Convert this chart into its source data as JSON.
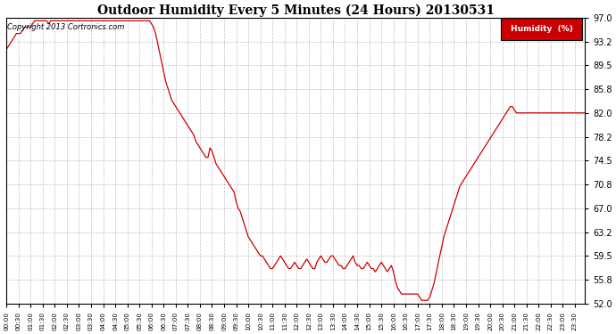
{
  "title": "Outdoor Humidity Every 5 Minutes (24 Hours) 20130531",
  "copyright": "Copyright 2013 Cortronics.com",
  "legend_label": "Humidity  (%)",
  "legend_bg": "#cc0000",
  "legend_text_color": "#ffffff",
  "line_color": "#cc0000",
  "background_color": "#ffffff",
  "grid_color": "#999999",
  "ylim": [
    52.0,
    97.0
  ],
  "yticks": [
    52.0,
    55.8,
    59.5,
    63.2,
    67.0,
    70.8,
    74.5,
    78.2,
    82.0,
    85.8,
    89.5,
    93.2,
    97.0
  ],
  "humidity_values": [
    92.0,
    92.5,
    93.0,
    93.5,
    94.0,
    94.5,
    94.5,
    94.5,
    95.0,
    95.5,
    95.5,
    95.5,
    95.5,
    96.0,
    96.5,
    96.5,
    96.5,
    96.5,
    96.5,
    96.5,
    96.5,
    96.0,
    96.5,
    96.5,
    96.5,
    96.5,
    96.5,
    96.5,
    96.5,
    96.5,
    96.5,
    96.5,
    96.5,
    96.5,
    96.5,
    96.5,
    96.5,
    96.5,
    96.5,
    96.5,
    96.5,
    96.5,
    96.5,
    96.5,
    96.5,
    96.5,
    96.5,
    96.5,
    96.5,
    96.5,
    96.5,
    96.5,
    96.5,
    96.5,
    96.5,
    96.5,
    96.5,
    96.5,
    96.5,
    96.5,
    96.5,
    96.5,
    96.5,
    96.5,
    96.5,
    96.5,
    96.5,
    96.5,
    96.5,
    96.5,
    96.5,
    96.5,
    96.0,
    95.5,
    94.5,
    93.0,
    91.5,
    90.0,
    88.5,
    87.0,
    86.0,
    85.0,
    84.0,
    83.5,
    83.0,
    82.5,
    82.0,
    81.5,
    81.0,
    80.5,
    80.0,
    79.5,
    79.0,
    78.5,
    77.5,
    77.0,
    76.5,
    76.0,
    75.5,
    75.0,
    75.0,
    76.5,
    76.0,
    75.0,
    74.0,
    73.5,
    73.0,
    72.5,
    72.0,
    71.5,
    71.0,
    70.5,
    70.0,
    69.5,
    68.0,
    67.0,
    66.5,
    65.5,
    64.5,
    63.5,
    62.5,
    62.0,
    61.5,
    61.0,
    60.5,
    60.0,
    59.5,
    59.5,
    59.0,
    58.5,
    58.0,
    57.5,
    57.5,
    58.0,
    58.5,
    59.0,
    59.5,
    59.0,
    58.5,
    58.0,
    57.5,
    57.5,
    58.0,
    58.5,
    58.0,
    57.5,
    57.5,
    58.0,
    58.5,
    59.0,
    58.5,
    58.0,
    57.5,
    57.5,
    58.5,
    59.0,
    59.5,
    59.0,
    58.5,
    58.5,
    59.0,
    59.5,
    59.5,
    59.0,
    58.5,
    58.0,
    58.0,
    57.5,
    57.5,
    58.0,
    58.5,
    59.0,
    59.5,
    58.5,
    58.0,
    58.0,
    57.5,
    57.5,
    58.0,
    58.5,
    58.0,
    57.5,
    57.5,
    57.0,
    57.5,
    58.0,
    58.5,
    58.0,
    57.5,
    57.0,
    57.5,
    58.0,
    57.0,
    55.5,
    54.5,
    54.0,
    53.5,
    53.5,
    53.5,
    53.5,
    53.5,
    53.5,
    53.5,
    53.5,
    53.5,
    53.0,
    52.5,
    52.5,
    52.5,
    52.5,
    53.0,
    54.0,
    55.0,
    56.5,
    58.0,
    59.5,
    61.0,
    62.5,
    63.5,
    64.5,
    65.5,
    66.5,
    67.5,
    68.5,
    69.5,
    70.5,
    71.0,
    71.5,
    72.0,
    72.5,
    73.0,
    73.5,
    74.0,
    74.5,
    75.0,
    75.5,
    76.0,
    76.5,
    77.0,
    77.5,
    78.0,
    78.5,
    79.0,
    79.5,
    80.0,
    80.5,
    81.0,
    81.5,
    82.0,
    82.5,
    83.0,
    83.0,
    82.5,
    82.0,
    82.0,
    82.0,
    82.0,
    82.0,
    82.0,
    82.0,
    82.0,
    82.0,
    82.0,
    82.0,
    82.0,
    82.0,
    82.0,
    82.0,
    82.0,
    82.0,
    82.0,
    82.0,
    82.0,
    82.0,
    82.0,
    82.0,
    82.0,
    82.0,
    82.0,
    82.0,
    82.0,
    82.0,
    82.0,
    82.0,
    82.0,
    82.0,
    82.0,
    82.0
  ]
}
